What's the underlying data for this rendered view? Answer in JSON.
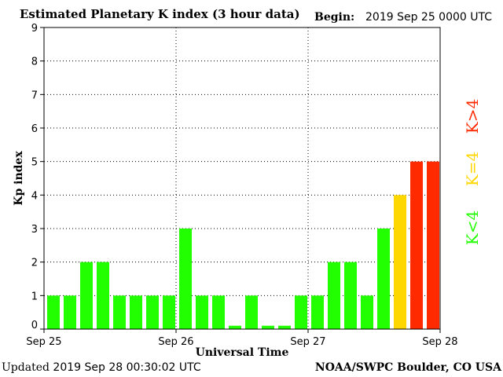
{
  "header": {
    "title": "Estimated Planetary K index (3 hour data)",
    "begin_label": "Begin:",
    "begin_value": "2019 Sep 25 0000 UTC"
  },
  "footer": {
    "updated_label": "Updated",
    "updated_value": "2019 Sep 28 00:30:02 UTC",
    "credit": "NOAA/SWPC Boulder, CO USA"
  },
  "colors": {
    "quiet": "#22ff00",
    "moderate": "#ffd700",
    "storm": "#ff2a00"
  },
  "chart_data": {
    "type": "bar",
    "title": "Estimated Planetary K index (3 hour data)",
    "xlabel": "Universal Time",
    "ylabel": "Kp index",
    "ylim": [
      0,
      9
    ],
    "yticks": [
      0,
      1,
      2,
      3,
      4,
      5,
      6,
      7,
      8,
      9
    ],
    "x_tick_labels": [
      "Sep 25",
      "Sep 26",
      "Sep 27",
      "Sep 28"
    ],
    "interval": "3 hour",
    "grid": "dotted",
    "values": [
      1,
      1,
      2,
      2,
      1,
      1,
      1,
      1,
      3,
      1,
      1,
      0.1,
      1,
      0.1,
      0.1,
      1,
      1,
      2,
      2,
      1,
      3,
      4,
      5,
      5
    ],
    "legend": [
      {
        "label": "K<4",
        "color": "#22ff00"
      },
      {
        "label": "K=4",
        "color": "#ffd700"
      },
      {
        "label": "K>4",
        "color": "#ff2a00"
      }
    ]
  }
}
